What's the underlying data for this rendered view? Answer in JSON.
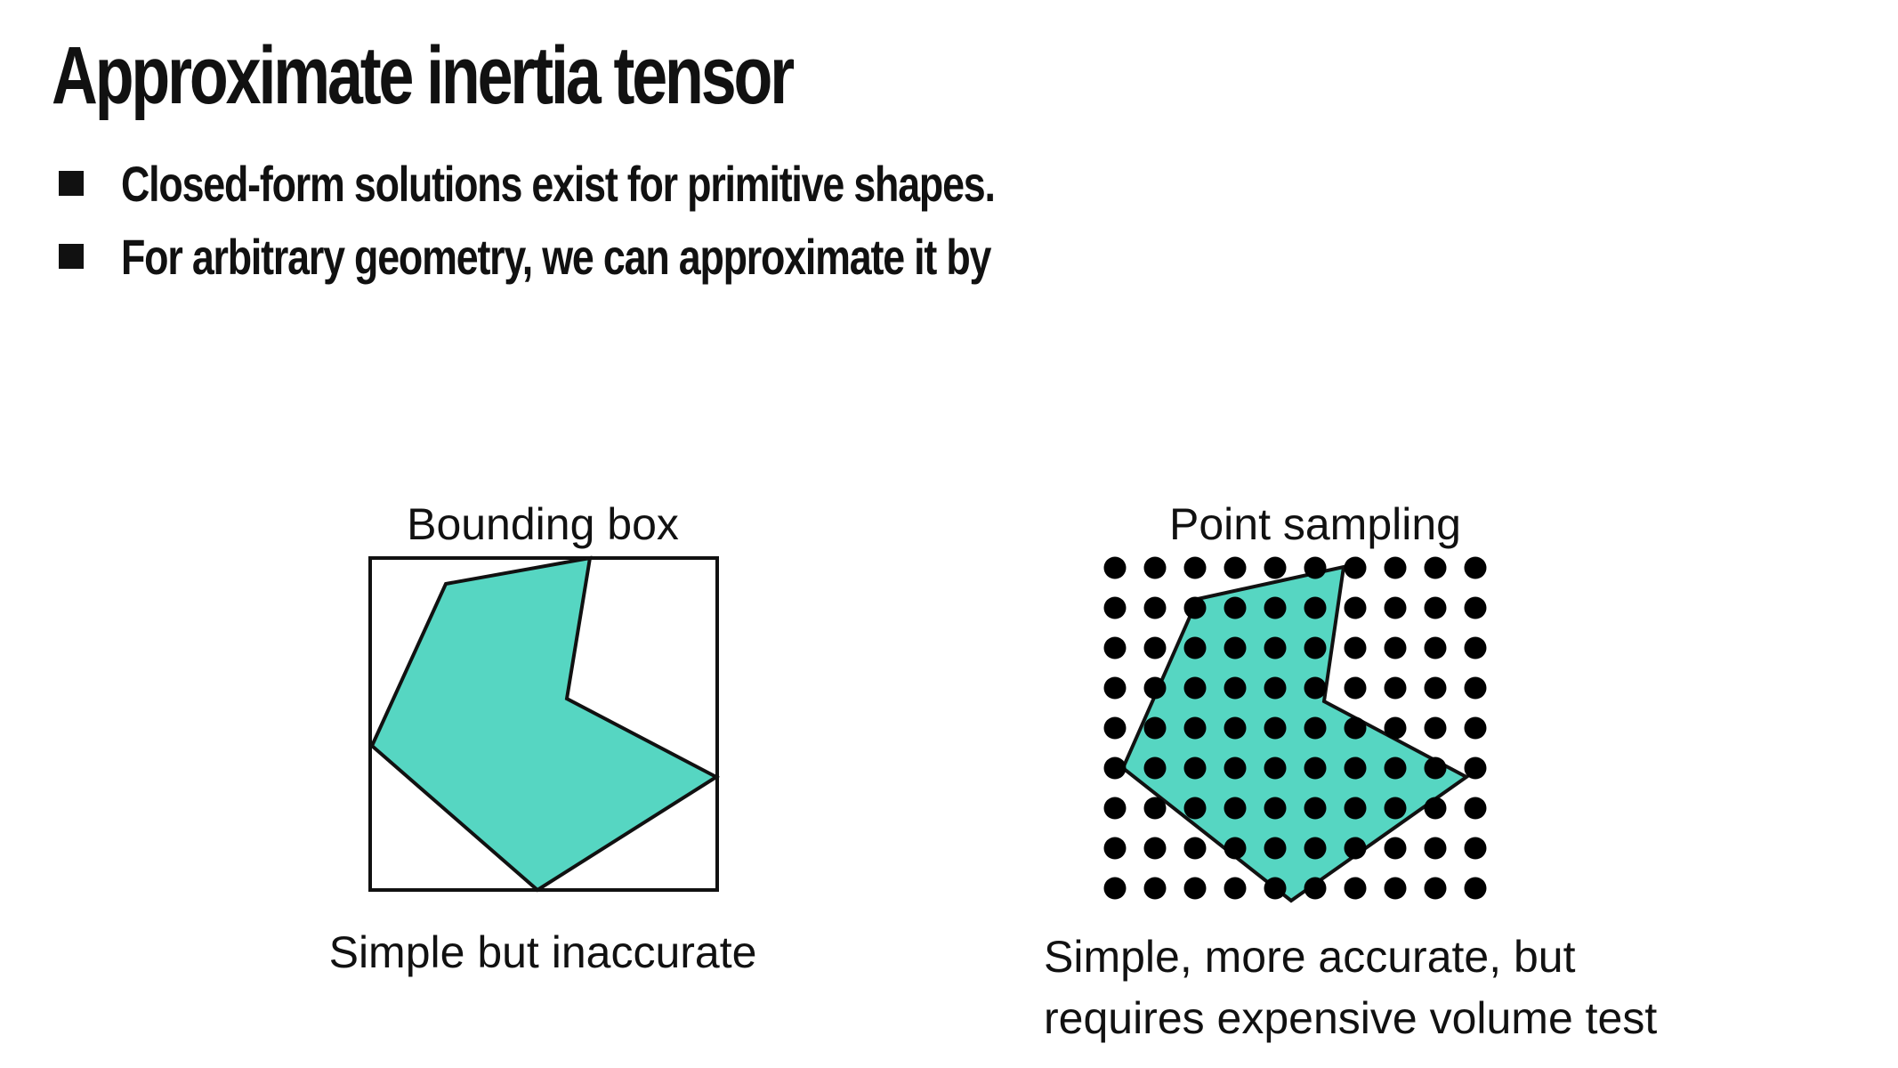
{
  "slide": {
    "title": "Approximate inertia tensor",
    "bullets": [
      "Closed-form solutions exist for primitive shapes.",
      "For arbitrary geometry, we can approximate it by"
    ]
  },
  "panels": {
    "bounding_box": {
      "label": "Bounding box",
      "caption": "Simple but inaccurate"
    },
    "point_sampling": {
      "label": "Point sampling",
      "caption_line1": "Simple, more accurate, but",
      "caption_line2": "requires expensive volume test",
      "grid_rows": 9,
      "grid_cols": 10
    }
  },
  "colors": {
    "shape_fill": "#56D6C2",
    "stroke": "#111111",
    "dot": "#000000",
    "background": "#FFFFFF"
  }
}
